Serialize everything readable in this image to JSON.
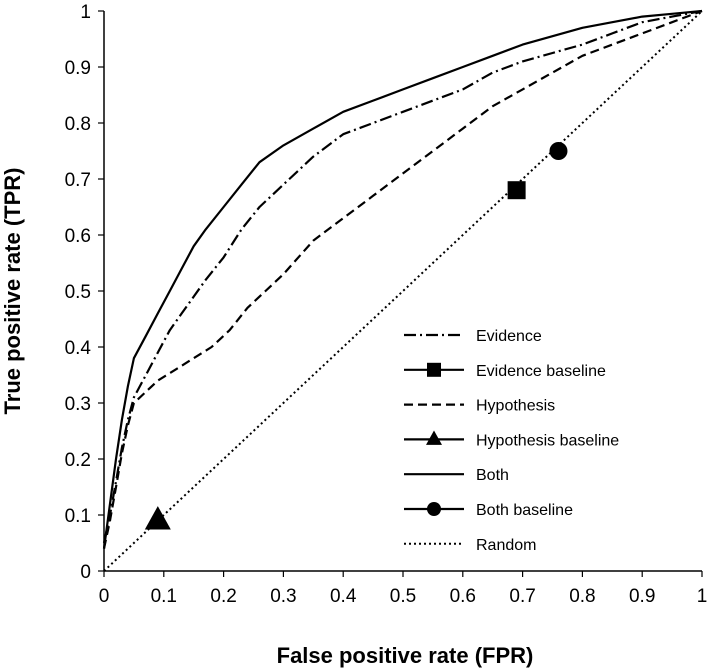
{
  "chart_data": {
    "type": "line",
    "title": "",
    "xlabel": "False positive rate (FPR)",
    "ylabel": "True positive rate (TPR)",
    "xlim": [
      0,
      1
    ],
    "ylim": [
      0,
      1
    ],
    "xticks": [
      "0",
      "0.1",
      "0.2",
      "0.3",
      "0.4",
      "0.5",
      "0.6",
      "0.7",
      "0.8",
      "0.9",
      "1"
    ],
    "yticks": [
      "0",
      "0.1",
      "0.2",
      "0.3",
      "0.4",
      "0.5",
      "0.6",
      "0.7",
      "0.8",
      "0.9",
      "1"
    ],
    "grid": false,
    "legend_position": "bottom-right",
    "series": [
      {
        "name": "Evidence",
        "kind": "line",
        "dash": "dash-dot",
        "points": [
          [
            0,
            0.05
          ],
          [
            0.01,
            0.1
          ],
          [
            0.02,
            0.16
          ],
          [
            0.03,
            0.22
          ],
          [
            0.04,
            0.27
          ],
          [
            0.05,
            0.31
          ],
          [
            0.07,
            0.35
          ],
          [
            0.09,
            0.39
          ],
          [
            0.11,
            0.43
          ],
          [
            0.13,
            0.46
          ],
          [
            0.15,
            0.49
          ],
          [
            0.17,
            0.52
          ],
          [
            0.2,
            0.56
          ],
          [
            0.23,
            0.61
          ],
          [
            0.26,
            0.65
          ],
          [
            0.3,
            0.69
          ],
          [
            0.35,
            0.74
          ],
          [
            0.4,
            0.78
          ],
          [
            0.45,
            0.8
          ],
          [
            0.5,
            0.82
          ],
          [
            0.55,
            0.84
          ],
          [
            0.6,
            0.86
          ],
          [
            0.65,
            0.89
          ],
          [
            0.7,
            0.91
          ],
          [
            0.75,
            0.925
          ],
          [
            0.8,
            0.94
          ],
          [
            0.85,
            0.96
          ],
          [
            0.9,
            0.98
          ],
          [
            0.95,
            0.99
          ],
          [
            1,
            1
          ]
        ]
      },
      {
        "name": "Evidence baseline",
        "kind": "marker",
        "marker": "square",
        "points": [
          [
            0.69,
            0.68
          ]
        ]
      },
      {
        "name": "Hypothesis",
        "kind": "line",
        "dash": "dashed",
        "points": [
          [
            0,
            0.04
          ],
          [
            0.01,
            0.09
          ],
          [
            0.02,
            0.15
          ],
          [
            0.03,
            0.21
          ],
          [
            0.04,
            0.26
          ],
          [
            0.05,
            0.3
          ],
          [
            0.07,
            0.32
          ],
          [
            0.09,
            0.34
          ],
          [
            0.12,
            0.36
          ],
          [
            0.15,
            0.38
          ],
          [
            0.18,
            0.4
          ],
          [
            0.21,
            0.43
          ],
          [
            0.24,
            0.47
          ],
          [
            0.27,
            0.5
          ],
          [
            0.3,
            0.53
          ],
          [
            0.35,
            0.59
          ],
          [
            0.4,
            0.63
          ],
          [
            0.45,
            0.67
          ],
          [
            0.5,
            0.71
          ],
          [
            0.55,
            0.75
          ],
          [
            0.6,
            0.79
          ],
          [
            0.65,
            0.83
          ],
          [
            0.7,
            0.86
          ],
          [
            0.75,
            0.89
          ],
          [
            0.8,
            0.92
          ],
          [
            0.85,
            0.94
          ],
          [
            0.9,
            0.96
          ],
          [
            0.95,
            0.98
          ],
          [
            1,
            1
          ]
        ]
      },
      {
        "name": "Hypothesis baseline",
        "kind": "marker",
        "marker": "triangle",
        "points": [
          [
            0.09,
            0.09
          ]
        ]
      },
      {
        "name": "Both",
        "kind": "line",
        "dash": "solid",
        "points": [
          [
            0,
            0.04
          ],
          [
            0.01,
            0.12
          ],
          [
            0.02,
            0.2
          ],
          [
            0.03,
            0.27
          ],
          [
            0.04,
            0.33
          ],
          [
            0.05,
            0.38
          ],
          [
            0.07,
            0.42
          ],
          [
            0.09,
            0.46
          ],
          [
            0.11,
            0.5
          ],
          [
            0.13,
            0.54
          ],
          [
            0.15,
            0.58
          ],
          [
            0.17,
            0.61
          ],
          [
            0.2,
            0.65
          ],
          [
            0.23,
            0.69
          ],
          [
            0.26,
            0.73
          ],
          [
            0.3,
            0.76
          ],
          [
            0.35,
            0.79
          ],
          [
            0.4,
            0.82
          ],
          [
            0.45,
            0.84
          ],
          [
            0.5,
            0.86
          ],
          [
            0.55,
            0.88
          ],
          [
            0.6,
            0.9
          ],
          [
            0.65,
            0.92
          ],
          [
            0.7,
            0.94
          ],
          [
            0.75,
            0.955
          ],
          [
            0.8,
            0.97
          ],
          [
            0.85,
            0.98
          ],
          [
            0.9,
            0.99
          ],
          [
            0.95,
            0.995
          ],
          [
            1,
            1
          ]
        ]
      },
      {
        "name": "Both baseline",
        "kind": "marker",
        "marker": "circle",
        "points": [
          [
            0.76,
            0.75
          ]
        ]
      },
      {
        "name": "Random",
        "kind": "line",
        "dash": "dotted",
        "points": [
          [
            0,
            0
          ],
          [
            1,
            1
          ]
        ]
      }
    ]
  }
}
